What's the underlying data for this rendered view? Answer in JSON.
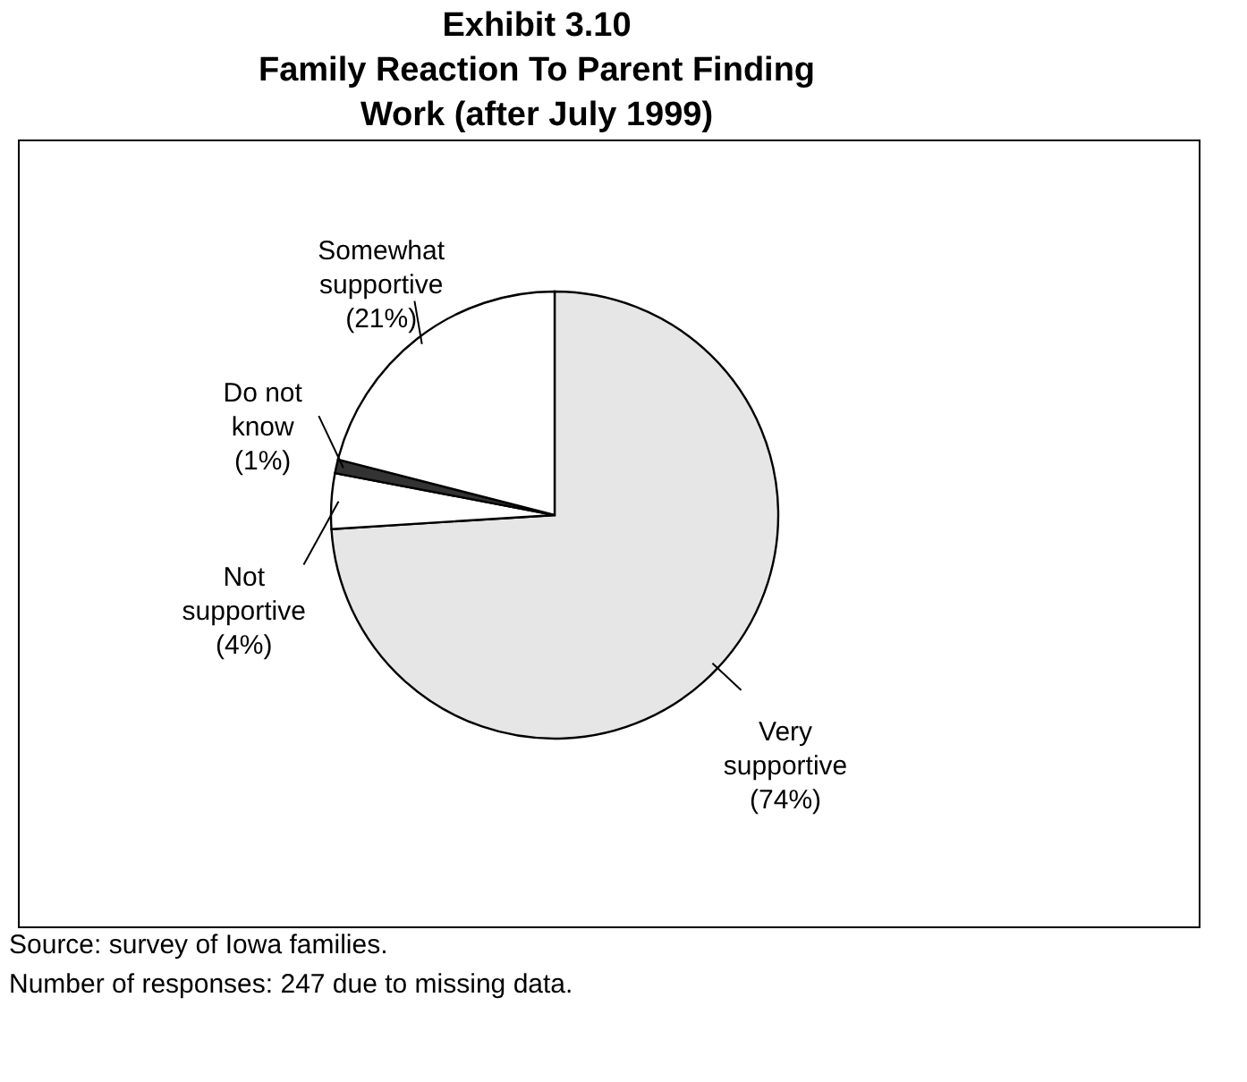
{
  "chart_data": {
    "type": "pie",
    "title": [
      "Exhibit 3.10",
      "Family Reaction To Parent Finding",
      "Work (after July 1999)"
    ],
    "categories": [
      "Very\nsupportive",
      "Not\nsupportive",
      "Do not\nknow",
      "Somewhat\nsupportive"
    ],
    "values": [
      74,
      4,
      1,
      21
    ],
    "colors": [
      "#e6e6e6",
      "#ffffff",
      "#333333",
      "#ffffff"
    ],
    "value_labels": [
      "(74%)",
      "(4%)",
      "(1%)",
      "(21%)"
    ],
    "annotations": [
      "Source: survey of Iowa families.",
      "Number of responses: 247 due to missing data."
    ]
  }
}
